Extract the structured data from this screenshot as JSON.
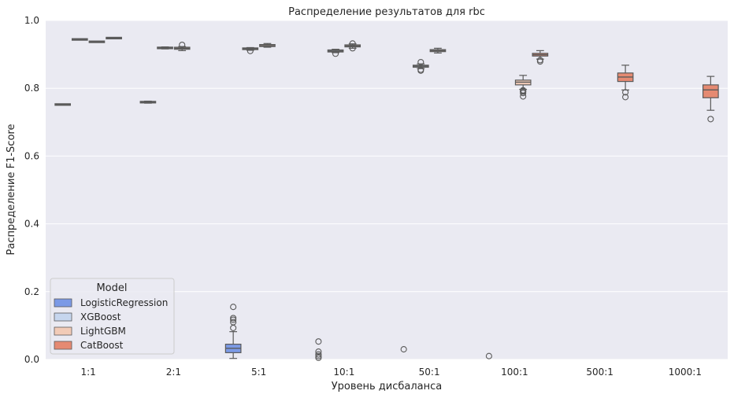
{
  "chart_data": {
    "type": "boxplot",
    "title": "Распределение результатов для rbc",
    "xlabel": "Уровень дисбаланса",
    "ylabel": "Распределение F1-Score",
    "ylim": [
      0.0,
      1.0
    ],
    "yticks": [
      "0.0",
      "0.2",
      "0.4",
      "0.6",
      "0.8",
      "1.0"
    ],
    "grid": true,
    "categories": [
      "1:1",
      "2:1",
      "5:1",
      "10:1",
      "50:1",
      "100:1",
      "500:1",
      "1000:1"
    ],
    "legend": {
      "title": "Model",
      "position": "lower-left",
      "entries": [
        "LogisticRegression",
        "XGBoost",
        "LightGBM",
        "CatBoost"
      ]
    },
    "series": [
      {
        "name": "LogisticRegression",
        "color": "#7b9ae6",
        "boxes": [
          {
            "q1": 0.751,
            "median": 0.752,
            "q3": 0.753,
            "lo": 0.751,
            "hi": 0.753,
            "outliers": []
          },
          {
            "q1": 0.757,
            "median": 0.759,
            "q3": 0.761,
            "lo": 0.756,
            "hi": 0.762,
            "outliers": []
          },
          {
            "q1": 0.02,
            "median": 0.033,
            "q3": 0.045,
            "lo": 0.003,
            "hi": 0.082,
            "outliers": [
              0.093,
              0.11,
              0.117,
              0.122,
              0.155
            ]
          },
          {
            "q1": 0.0,
            "median": 0.0,
            "q3": 0.0,
            "lo": 0.0,
            "hi": 0.0,
            "outliers": [
              0.005,
              0.01,
              0.015,
              0.023,
              0.053
            ]
          },
          {
            "q1": 0.0,
            "median": 0.0,
            "q3": 0.0,
            "lo": 0.0,
            "hi": 0.0,
            "outliers": [
              0.03
            ]
          },
          {
            "q1": 0.0,
            "median": 0.0,
            "q3": 0.0,
            "lo": 0.0,
            "hi": 0.0,
            "outliers": [
              0.01
            ]
          },
          {
            "q1": 0.0,
            "median": 0.0,
            "q3": 0.0,
            "lo": 0.0,
            "hi": 0.0,
            "outliers": []
          },
          {
            "q1": 0.0,
            "median": 0.0,
            "q3": 0.0,
            "lo": 0.0,
            "hi": 0.0,
            "outliers": []
          }
        ]
      },
      {
        "name": "XGBoost",
        "color": "#c6d6ee",
        "boxes": [
          {
            "q1": 0.943,
            "median": 0.944,
            "q3": 0.945,
            "lo": 0.943,
            "hi": 0.945,
            "outliers": []
          },
          {
            "q1": 0.917,
            "median": 0.919,
            "q3": 0.921,
            "lo": 0.916,
            "hi": 0.922,
            "outliers": []
          },
          {
            "q1": 0.914,
            "median": 0.917,
            "q3": 0.919,
            "lo": 0.912,
            "hi": 0.92,
            "outliers": [
              0.91
            ]
          },
          {
            "q1": 0.907,
            "median": 0.91,
            "q3": 0.913,
            "lo": 0.905,
            "hi": 0.915,
            "outliers": [
              0.902
            ]
          },
          {
            "q1": 0.862,
            "median": 0.865,
            "q3": 0.868,
            "lo": 0.858,
            "hi": 0.872,
            "outliers": [
              0.852,
              0.855,
              0.877
            ]
          },
          {
            "q1": 0.0,
            "median": 0.0,
            "q3": 0.0,
            "lo": 0.0,
            "hi": 0.0,
            "outliers": []
          },
          {
            "q1": 0.0,
            "median": 0.0,
            "q3": 0.0,
            "lo": 0.0,
            "hi": 0.0,
            "outliers": []
          },
          {
            "q1": 0.0,
            "median": 0.0,
            "q3": 0.0,
            "lo": 0.0,
            "hi": 0.0,
            "outliers": []
          }
        ]
      },
      {
        "name": "LightGBM",
        "color": "#f2cbb7",
        "boxes": [
          {
            "q1": 0.936,
            "median": 0.937,
            "q3": 0.938,
            "lo": 0.936,
            "hi": 0.938,
            "outliers": []
          },
          {
            "q1": 0.915,
            "median": 0.918,
            "q3": 0.921,
            "lo": 0.911,
            "hi": 0.923,
            "outliers": [
              0.928
            ]
          },
          {
            "q1": 0.923,
            "median": 0.926,
            "q3": 0.929,
            "lo": 0.921,
            "hi": 0.932,
            "outliers": []
          },
          {
            "q1": 0.922,
            "median": 0.925,
            "q3": 0.928,
            "lo": 0.918,
            "hi": 0.931,
            "outliers": [
              0.918,
              0.932
            ]
          },
          {
            "q1": 0.908,
            "median": 0.911,
            "q3": 0.914,
            "lo": 0.904,
            "hi": 0.918,
            "outliers": []
          },
          {
            "q1": 0.81,
            "median": 0.818,
            "q3": 0.824,
            "lo": 0.797,
            "hi": 0.838,
            "outliers": [
              0.776,
              0.786,
              0.79,
              0.792,
              0.794
            ]
          },
          {
            "q1": 0.0,
            "median": 0.0,
            "q3": 0.0,
            "lo": 0.0,
            "hi": 0.0,
            "outliers": []
          },
          {
            "q1": 0.0,
            "median": 0.0,
            "q3": 0.0,
            "lo": 0.0,
            "hi": 0.0,
            "outliers": []
          }
        ]
      },
      {
        "name": "CatBoost",
        "color": "#e58a72",
        "boxes": [
          {
            "q1": 0.947,
            "median": 0.948,
            "q3": 0.949,
            "lo": 0.947,
            "hi": 0.949,
            "outliers": []
          },
          {
            "q1": 0.0,
            "median": 0.0,
            "q3": 0.0,
            "lo": 0.0,
            "hi": 0.0,
            "outliers": []
          },
          {
            "q1": 0.0,
            "median": 0.0,
            "q3": 0.0,
            "lo": 0.0,
            "hi": 0.0,
            "outliers": []
          },
          {
            "q1": 0.0,
            "median": 0.0,
            "q3": 0.0,
            "lo": 0.0,
            "hi": 0.0,
            "outliers": []
          },
          {
            "q1": 0.0,
            "median": 0.0,
            "q3": 0.0,
            "lo": 0.0,
            "hi": 0.0,
            "outliers": []
          },
          {
            "q1": 0.895,
            "median": 0.899,
            "q3": 0.903,
            "lo": 0.886,
            "hi": 0.911,
            "outliers": [
              0.879,
              0.883
            ]
          },
          {
            "q1": 0.82,
            "median": 0.833,
            "q3": 0.845,
            "lo": 0.795,
            "hi": 0.868,
            "outliers": [
              0.774,
              0.788
            ]
          },
          {
            "q1": 0.772,
            "median": 0.795,
            "q3": 0.81,
            "lo": 0.735,
            "hi": 0.835,
            "outliers": [
              0.709
            ]
          }
        ]
      }
    ]
  }
}
